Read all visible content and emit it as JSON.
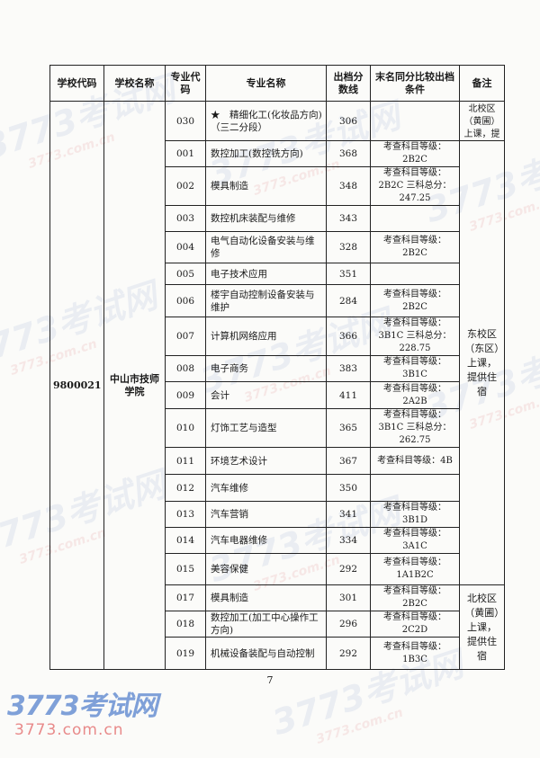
{
  "headers": {
    "school_code": "学校代码",
    "school_name": "学校名称",
    "major_code": "专业代码",
    "major_name": "专业名称",
    "cutoff": "出档分数线",
    "tiebreak": "末名同分比较出档条件",
    "remark": "备注"
  },
  "school": {
    "code": "9800021",
    "name": "中山市技师学院"
  },
  "remarks": {
    "north_top": "北校区（黄圃）上课，提供住宿",
    "east": "东校区（东区）上课，提供住宿",
    "north_bottom": "北校区（黄圃）上课，提供住宿"
  },
  "rows": [
    {
      "code": "030",
      "name": "★　精细化工(化妆品方向)（三二分段）",
      "score": "306",
      "cond": ""
    },
    {
      "code": "001",
      "name": "数控加工(数控铣方向)",
      "score": "368",
      "cond": "考查科目等级：2B2C"
    },
    {
      "code": "002",
      "name": "模具制造",
      "score": "348",
      "cond": "考查科目等级：2B2C 三科总分：247.25"
    },
    {
      "code": "003",
      "name": "数控机床装配与维修",
      "score": "343",
      "cond": ""
    },
    {
      "code": "004",
      "name": "电气自动化设备安装与维修",
      "score": "328",
      "cond": "考查科目等级：2B2C"
    },
    {
      "code": "005",
      "name": "电子技术应用",
      "score": "351",
      "cond": ""
    },
    {
      "code": "006",
      "name": "楼宇自动控制设备安装与维护",
      "score": "284",
      "cond": "考查科目等级：2B2C"
    },
    {
      "code": "007",
      "name": "计算机网络应用",
      "score": "366",
      "cond": "考查科目等级：3B1C 三科总分：228.75"
    },
    {
      "code": "008",
      "name": "电子商务",
      "score": "383",
      "cond": "考查科目等级：3B1C"
    },
    {
      "code": "009",
      "name": "会计",
      "score": "411",
      "cond": "考查科目等级：2A2B"
    },
    {
      "code": "010",
      "name": "灯饰工艺与造型",
      "score": "365",
      "cond": "考查科目等级：3B1C 三科总分：262.75"
    },
    {
      "code": "011",
      "name": "环境艺术设计",
      "score": "367",
      "cond": "考查科目等级：4B"
    },
    {
      "code": "012",
      "name": "汽车维修",
      "score": "350",
      "cond": ""
    },
    {
      "code": "013",
      "name": "汽车营销",
      "score": "341",
      "cond": "考查科目等级：3B1D"
    },
    {
      "code": "014",
      "name": "汽车电器维修",
      "score": "334",
      "cond": "考查科目等级：3A1C"
    },
    {
      "code": "015",
      "name": "美容保健",
      "score": "292",
      "cond": "考查科目等级：1A1B2C"
    },
    {
      "code": "017",
      "name": "模具制造",
      "score": "301",
      "cond": "考查科目等级：2B2C"
    },
    {
      "code": "018",
      "name": "数控加工(加工中心操作工方向)",
      "score": "296",
      "cond": "考查科目等级：2C2D"
    },
    {
      "code": "019",
      "name": "机械设备装配与自动控制",
      "score": "292",
      "cond": "考查科目等级：1B3C"
    }
  ],
  "page_number": "7",
  "watermark": {
    "brand": "3773考试网",
    "domain": "3773.com.cn"
  }
}
